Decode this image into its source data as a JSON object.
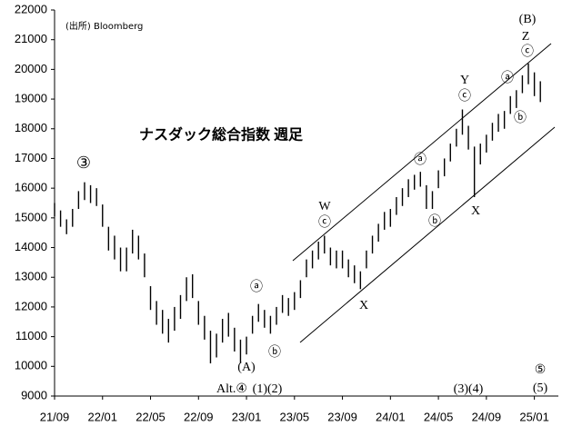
{
  "chart_data": {
    "type": "range-bar",
    "title": "ナスダック総合指数 週足",
    "source": "(出所) Bloomberg",
    "color": "#000000",
    "x": [
      0,
      0.5,
      1,
      1.5,
      2,
      2.5,
      3,
      3.5,
      4,
      4.5,
      5,
      5.5,
      6,
      6.5,
      7,
      7.5,
      8,
      8.5,
      9,
      9.5,
      10,
      10.5,
      11,
      11.5,
      12,
      12.5,
      13,
      13.5,
      14,
      14.5,
      15,
      15.5,
      16,
      16.5,
      17,
      17.5,
      18,
      18.5,
      19,
      19.5,
      20,
      20.5,
      21,
      21.5,
      22,
      22.5,
      23,
      23.5,
      24,
      24.5,
      25,
      25.5,
      26,
      26.5,
      27,
      27.5,
      28,
      28.5,
      29,
      29.5,
      30,
      30.5,
      31,
      31.5,
      32,
      32.5,
      33,
      33.5,
      34,
      34.5,
      35,
      35.5,
      36,
      36.5,
      37,
      37.5,
      38,
      38.5,
      39,
      39.5,
      40,
      40.5
    ],
    "series": [
      {
        "name": "high",
        "values": [
          15500,
          15250,
          14950,
          15300,
          15900,
          16200,
          16100,
          16000,
          15450,
          14700,
          14400,
          14000,
          14000,
          14600,
          14400,
          13800,
          12700,
          12200,
          11900,
          11600,
          12000,
          12400,
          13000,
          13100,
          12200,
          11700,
          11200,
          11100,
          11600,
          11800,
          11300,
          10900,
          11000,
          11700,
          12100,
          11900,
          11700,
          12000,
          12400,
          12300,
          12500,
          12900,
          13600,
          13900,
          14200,
          14400,
          14000,
          13900,
          13900,
          13600,
          13400,
          13200,
          13900,
          14400,
          14800,
          15200,
          15300,
          15700,
          16000,
          16300,
          16450,
          16550,
          16100,
          15900,
          16600,
          17000,
          17500,
          18000,
          18650,
          18100,
          17400,
          17500,
          17800,
          18200,
          18500,
          18600,
          19100,
          19300,
          19800,
          20200,
          19900,
          19600
        ]
      },
      {
        "name": "low",
        "values": [
          15050,
          14700,
          14450,
          14700,
          15300,
          15600,
          15500,
          15400,
          14700,
          13900,
          13600,
          13200,
          13200,
          13800,
          13600,
          13000,
          11900,
          11400,
          11100,
          10800,
          11200,
          11600,
          12200,
          12300,
          11400,
          10900,
          10100,
          10300,
          10800,
          11000,
          10500,
          10100,
          10400,
          11100,
          11500,
          11300,
          11100,
          11400,
          11800,
          11700,
          11900,
          12300,
          13000,
          13300,
          13600,
          13800,
          13400,
          13300,
          13300,
          13000,
          12800,
          12600,
          13300,
          13800,
          14200,
          14600,
          14700,
          15100,
          15400,
          15700,
          15950,
          16050,
          15300,
          15300,
          16000,
          16400,
          16900,
          17400,
          17800,
          17300,
          15700,
          16800,
          17200,
          17600,
          17900,
          18000,
          18500,
          18700,
          19200,
          19500,
          19100,
          18900
        ]
      }
    ],
    "xlim": [
      0,
      42
    ],
    "xticks": [
      {
        "value": 0,
        "label": "21/09"
      },
      {
        "value": 4,
        "label": "22/01"
      },
      {
        "value": 8,
        "label": "22/05"
      },
      {
        "value": 12,
        "label": "22/09"
      },
      {
        "value": 16,
        "label": "23/01"
      },
      {
        "value": 20,
        "label": "23/05"
      },
      {
        "value": 24,
        "label": "23/09"
      },
      {
        "value": 28,
        "label": "24/01"
      },
      {
        "value": 32,
        "label": "24/05"
      },
      {
        "value": 36,
        "label": "24/09"
      },
      {
        "value": 40,
        "label": "25/01"
      }
    ],
    "ylim": [
      9000,
      22000
    ],
    "yticks": [
      9000,
      10000,
      11000,
      12000,
      13000,
      14000,
      15000,
      16000,
      17000,
      18000,
      19000,
      20000,
      21000,
      22000
    ],
    "annotations": [
      "③",
      "ⓐ",
      "ⓑ",
      "(A)",
      "Alt.④",
      "(1)(2)",
      "W",
      "ⓒ",
      "X",
      "ⓐ",
      "ⓑ",
      "Y",
      "ⓒ",
      "X",
      "ⓐ",
      "ⓑ",
      "(B)",
      "Z",
      "ⓒ",
      "(3)(4)",
      "⑤",
      "(5)"
    ]
  }
}
